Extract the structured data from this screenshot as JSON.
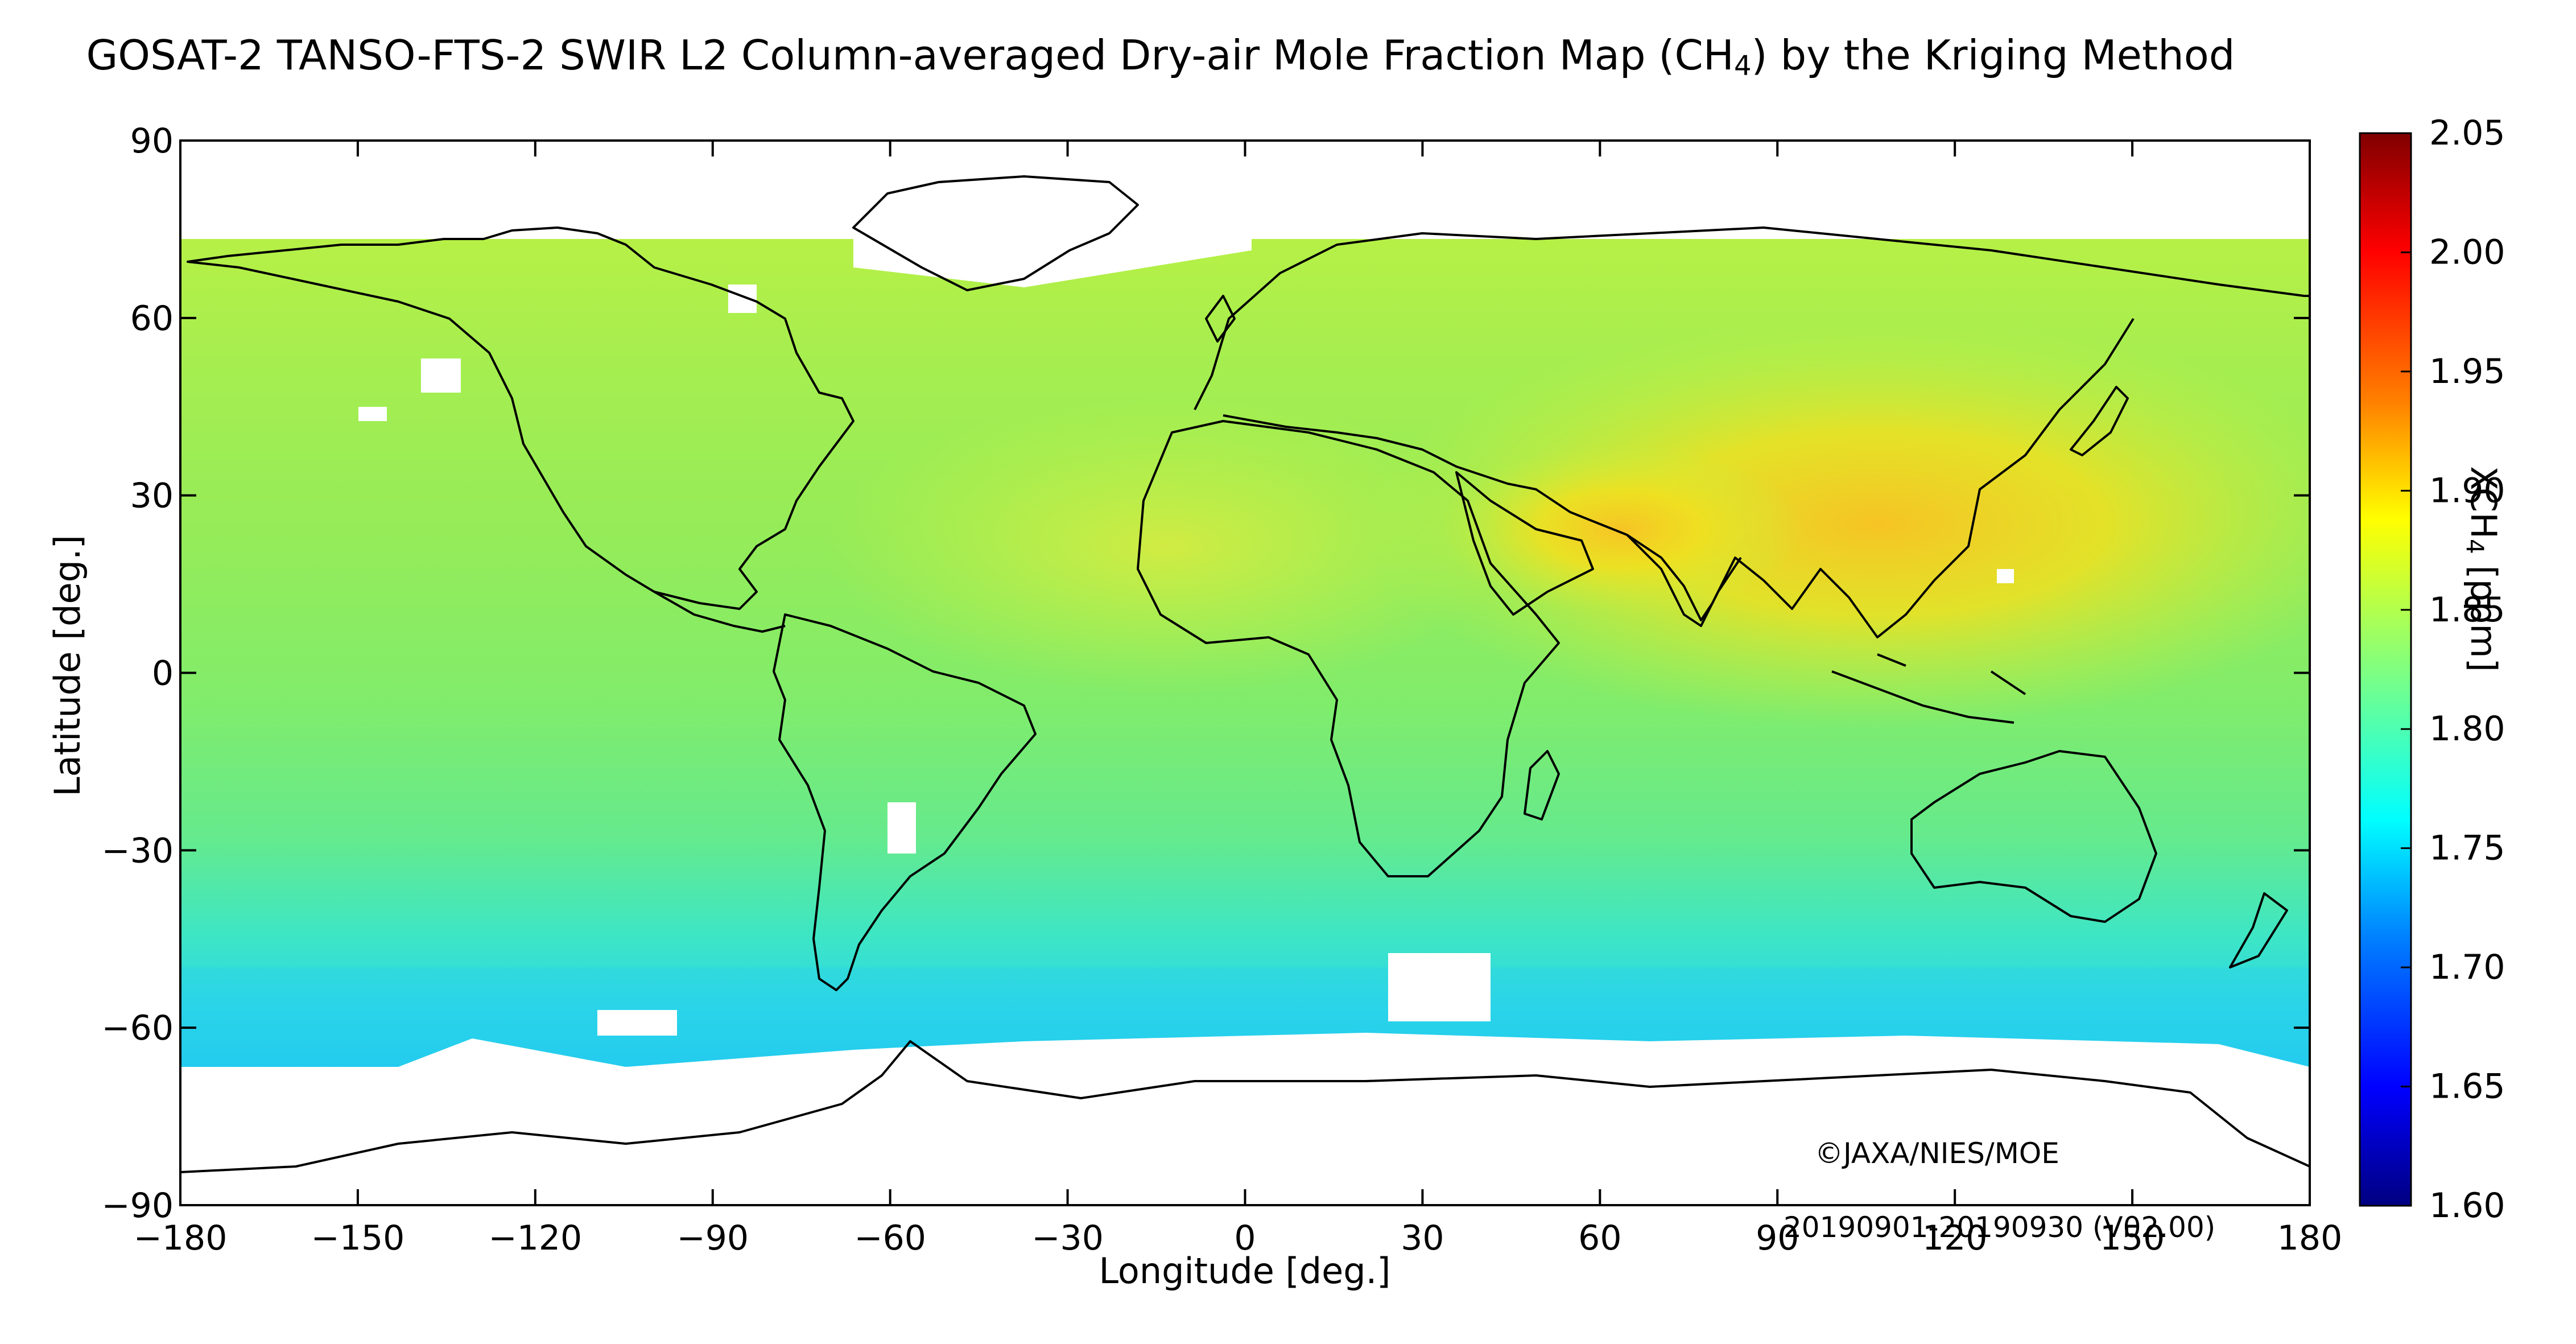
{
  "title_parts": {
    "before": "GOSAT-2 TANSO-FTS-2 SWIR L2 Column-averaged Dry-air Mole Fraction Map (CH",
    "subscript": "4",
    "after": ") by the Kriging Method"
  },
  "map": {
    "projection": "equirectangular",
    "x_axis": {
      "label": "Longitude [deg.]",
      "range": [
        -180,
        180
      ],
      "ticks": [
        "−180",
        "−150",
        "−120",
        "−90",
        "−60",
        "−30",
        "0",
        "30",
        "60",
        "90",
        "120",
        "150",
        "180"
      ]
    },
    "y_axis": {
      "label": "Latitude [deg.]",
      "range": [
        -90,
        90
      ],
      "ticks": [
        "90",
        "60",
        "30",
        "0",
        "−30",
        "−60",
        "−90"
      ]
    },
    "data_coverage_latitude": [
      -67,
      72
    ],
    "ocean_field_color": "#8cf060",
    "high_region_color": "#f4d020",
    "polar_ocean_color": "#2ee6e0"
  },
  "colorbar": {
    "label_main": "XCH",
    "label_sub": "4",
    "label_unit": " [ppm]",
    "range": [
      1.6,
      2.05
    ],
    "ticks": [
      "2.05",
      "2.00",
      "1.95",
      "1.90",
      "1.85",
      "1.80",
      "1.75",
      "1.70",
      "1.65",
      "1.60"
    ],
    "colormap": "jet",
    "colors": [
      "#000080",
      "#0000ff",
      "#0080ff",
      "#00ffff",
      "#80ff80",
      "#ffff00",
      "#ff8000",
      "#ff0000",
      "#800000"
    ]
  },
  "copyright": "©JAXA/NIES/MOE",
  "period": "20190901-20190930 (V02.00)"
}
